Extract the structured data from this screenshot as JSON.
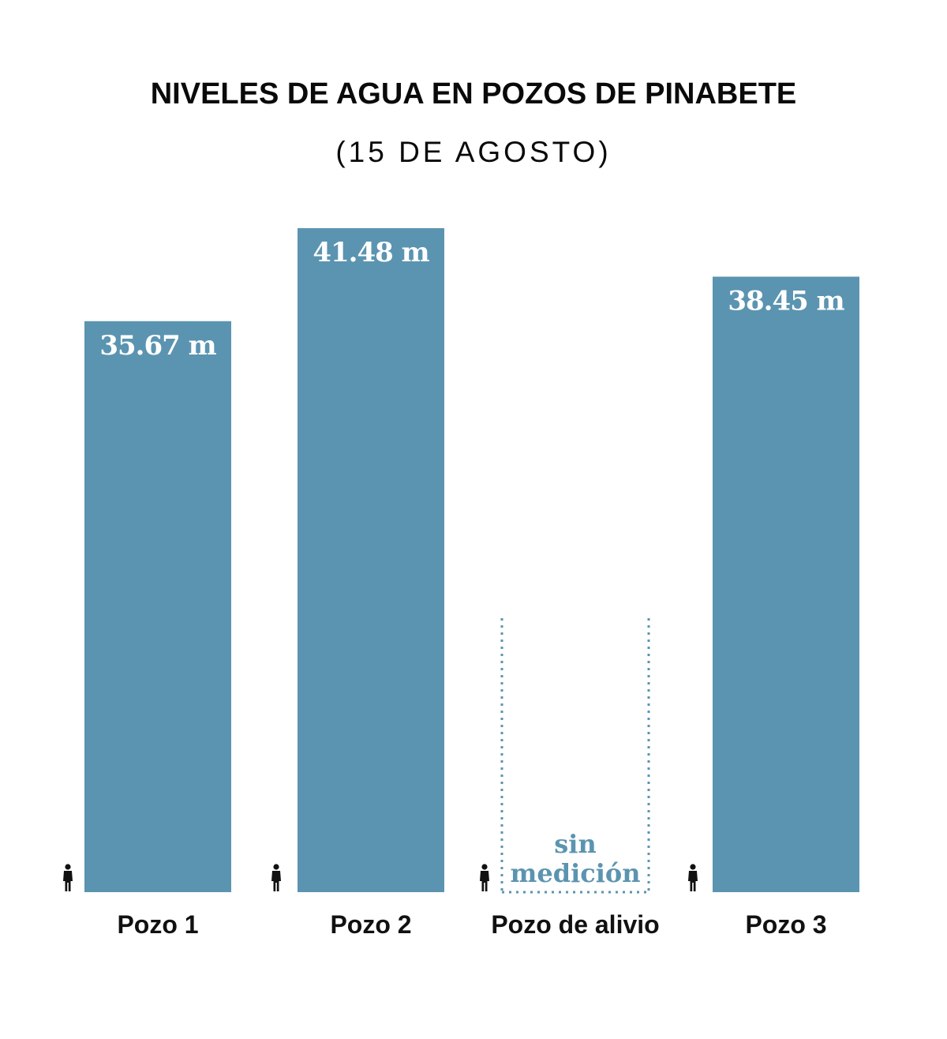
{
  "chart_data": {
    "type": "bar",
    "title": "NIVELES DE AGUA EN POZOS DE PINABETE",
    "subtitle": "(15 DE AGOSTO)",
    "categories": [
      "Pozo 1",
      "Pozo 2",
      "Pozo de alivio",
      "Pozo 3"
    ],
    "values": [
      35.67,
      41.48,
      null,
      38.45
    ],
    "value_labels": [
      "35.67 m",
      "41.48 m",
      "",
      "38.45 m"
    ],
    "no_measure_label": [
      "sin",
      "medición"
    ],
    "unit": "m",
    "ylim": [
      0,
      41.48
    ],
    "bar_color": "#5b94b0",
    "grid": false,
    "legend": "none",
    "person_icon": "person-silhouette-icon"
  }
}
